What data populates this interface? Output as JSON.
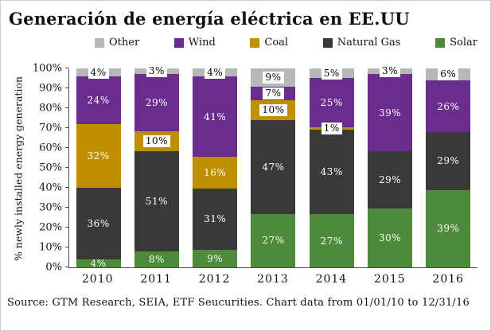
{
  "title": "Generación de energía eléctrica en EE.UU",
  "source": "Source: GTM Research, SEIA, ETF Seucurities. Chart data from 01/01/10 to 12/31/16",
  "legend": [
    {
      "label": "Other",
      "color": "#b7b7b7"
    },
    {
      "label": "Wind",
      "color": "#6a2d8e"
    },
    {
      "label": "Coal",
      "color": "#bf8f00"
    },
    {
      "label": "Natural Gas",
      "color": "#3b3838"
    },
    {
      "label": "Solar",
      "color": "#4d8a39"
    }
  ],
  "chart_data": {
    "type": "bar",
    "stacked": true,
    "title": "Generación de energía eléctrica en EE.UU",
    "xlabel": "",
    "ylabel": "% newly installed energy generation",
    "ylim": [
      0,
      100
    ],
    "grid": false,
    "legend_position": "top",
    "y_ticks": [
      "0%",
      "10%",
      "20%",
      "30%",
      "40%",
      "50%",
      "60%",
      "70%",
      "80%",
      "90%",
      "100%"
    ],
    "categories": [
      "2010",
      "2011",
      "2012",
      "2013",
      "2014",
      "2015",
      "2016"
    ],
    "series": [
      {
        "name": "Solar",
        "color": "#4d8a39",
        "values": [
          4,
          8,
          9,
          27,
          27,
          30,
          39
        ]
      },
      {
        "name": "Natural Gas",
        "color": "#3b3838",
        "values": [
          36,
          51,
          31,
          47,
          43,
          29,
          29
        ]
      },
      {
        "name": "Coal",
        "color": "#bf8f00",
        "values": [
          32,
          10,
          16,
          10,
          1,
          0,
          0
        ]
      },
      {
        "name": "Wind",
        "color": "#6a2d8e",
        "values": [
          24,
          29,
          41,
          7,
          25,
          39,
          26
        ]
      },
      {
        "name": "Other",
        "color": "#b7b7b7",
        "values": [
          4,
          3,
          4,
          9,
          5,
          3,
          6
        ]
      }
    ]
  }
}
